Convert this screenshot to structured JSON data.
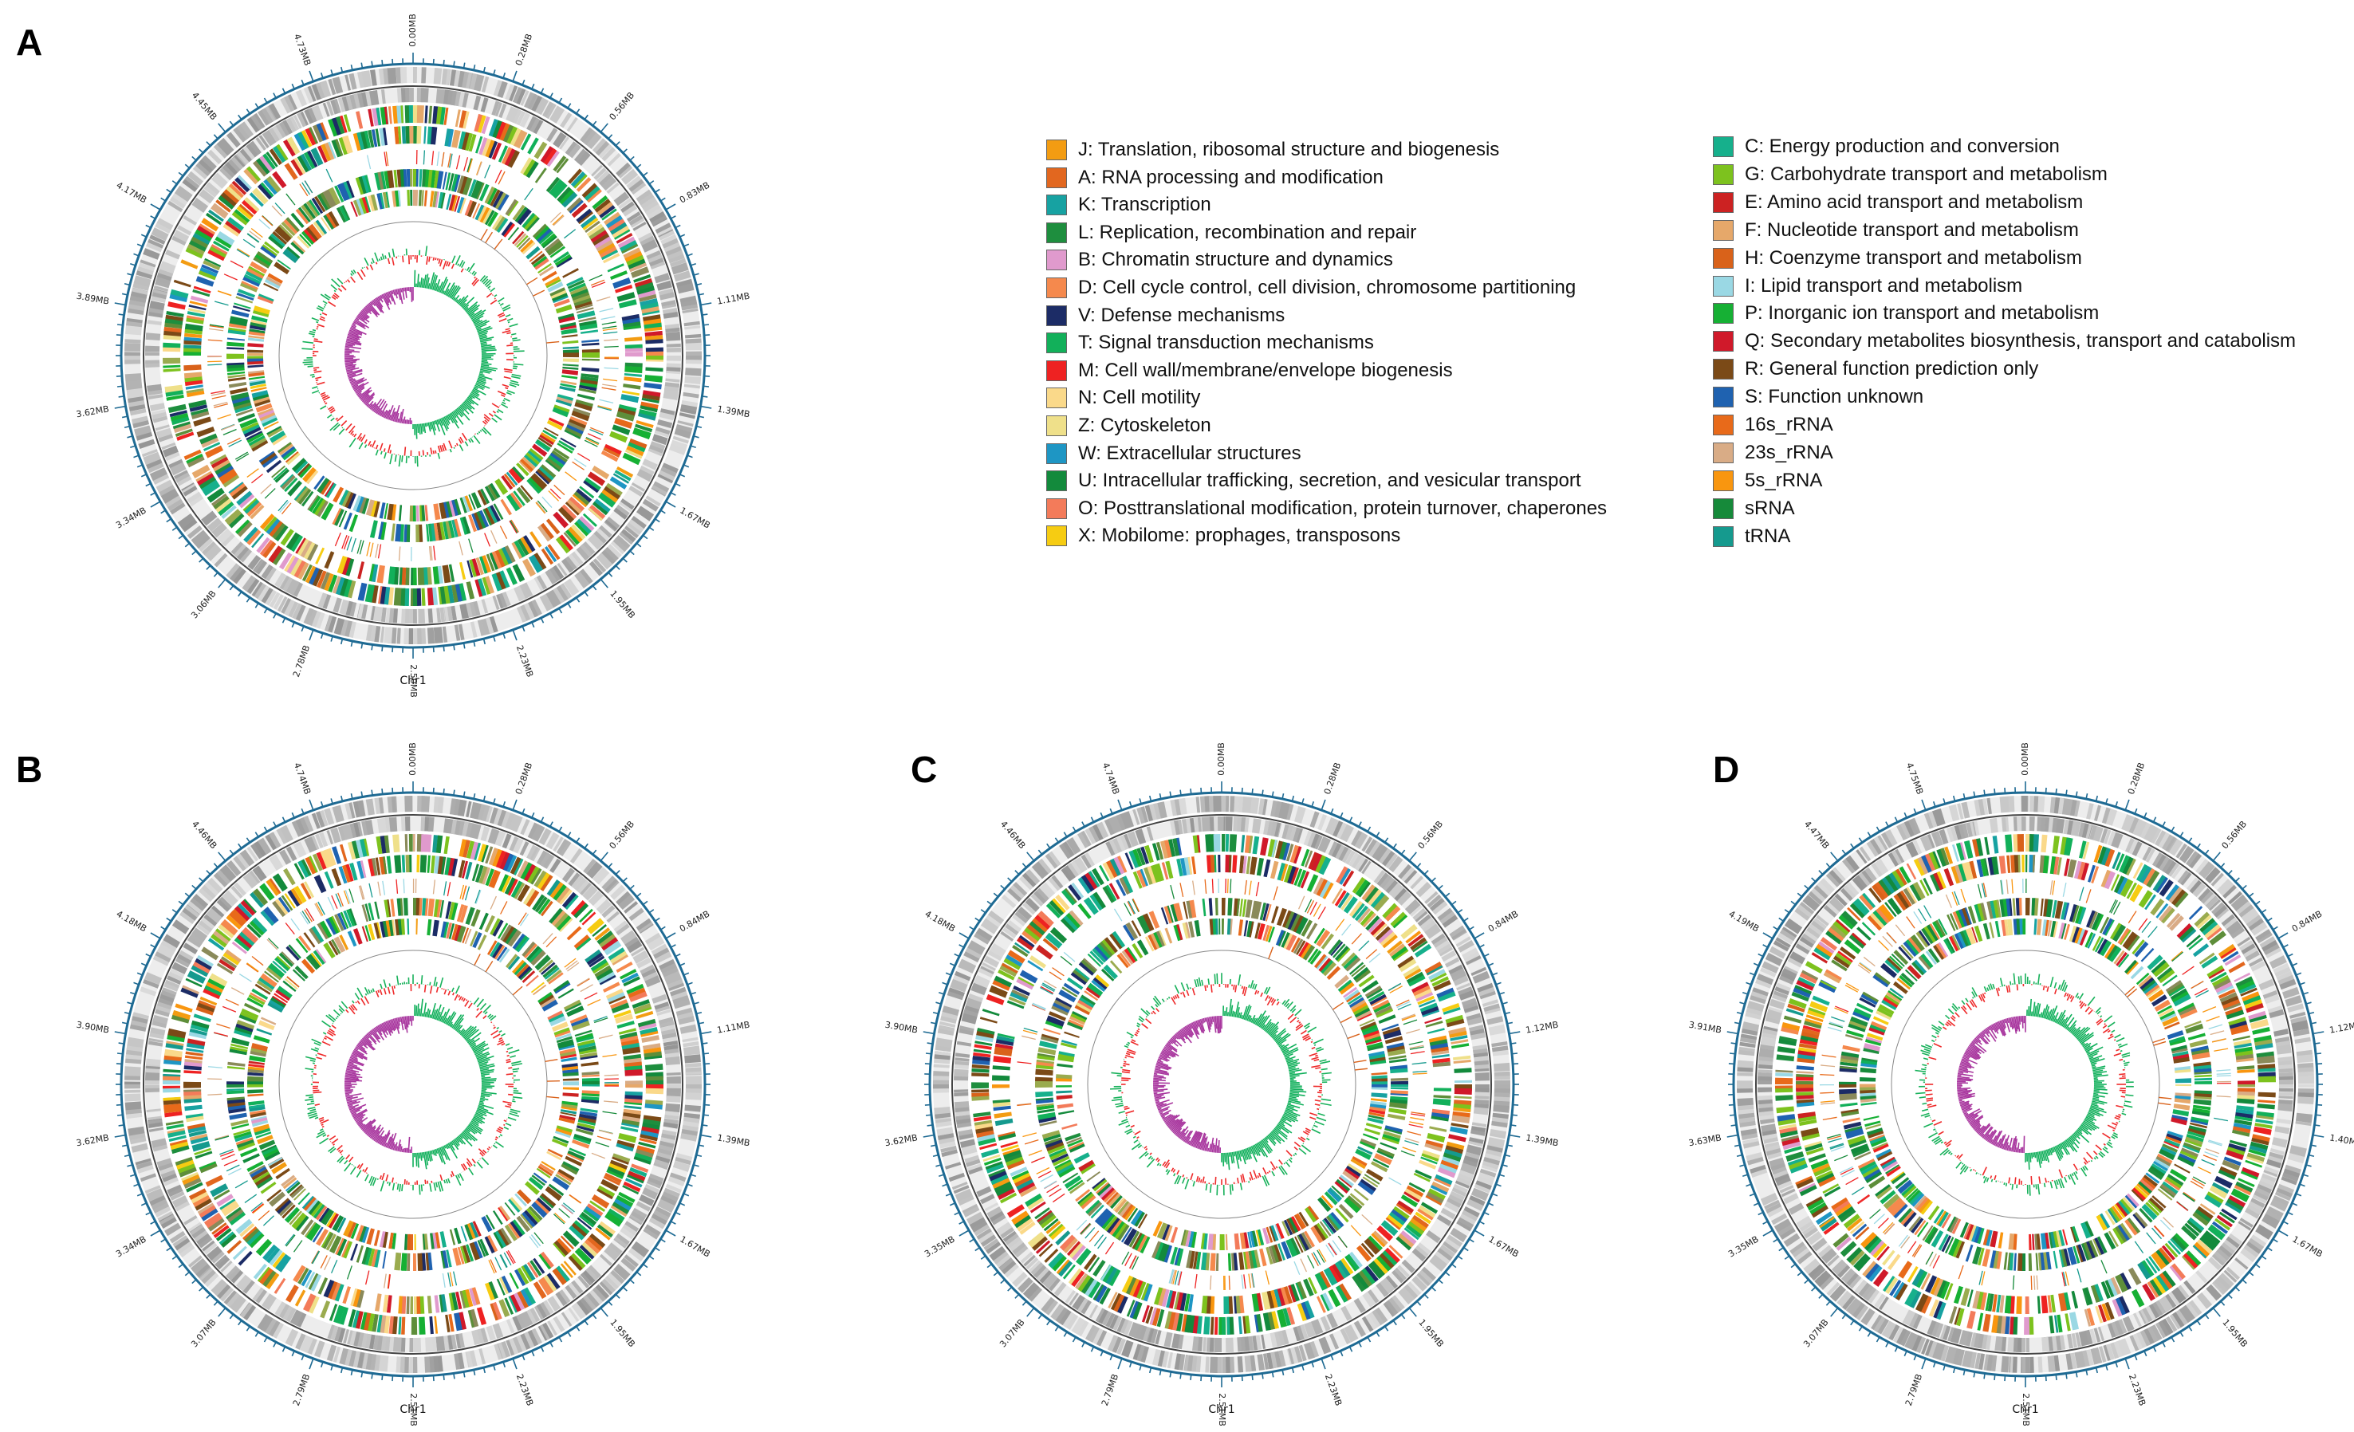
{
  "panels": [
    {
      "label": "A",
      "chromosome": "Chr1",
      "ticks": [
        "0.00MB",
        "0.28MB",
        "0.56MB",
        "0.83MB",
        "1.11MB",
        "1.39MB",
        "1.67MB",
        "1.95MB",
        "2.23MB",
        "2.50MB",
        "2.78MB",
        "3.06MB",
        "3.34MB",
        "3.62MB",
        "3.89MB",
        "4.17MB",
        "4.45MB",
        "4.73MB"
      ]
    },
    {
      "label": "B",
      "chromosome": "Chr1",
      "ticks": [
        "0.00MB",
        "0.28MB",
        "0.56MB",
        "0.84MB",
        "1.11MB",
        "1.39MB",
        "1.67MB",
        "1.95MB",
        "2.23MB",
        "2.51MB",
        "2.79MB",
        "3.07MB",
        "3.34MB",
        "3.62MB",
        "3.90MB",
        "4.18MB",
        "4.46MB",
        "4.74MB"
      ]
    },
    {
      "label": "C",
      "chromosome": "Chr1",
      "ticks": [
        "0.00MB",
        "0.28MB",
        "0.56MB",
        "0.84MB",
        "1.12MB",
        "1.39MB",
        "1.67MB",
        "1.95MB",
        "2.23MB",
        "2.51MB",
        "2.79MB",
        "3.07MB",
        "3.35MB",
        "3.62MB",
        "3.90MB",
        "4.18MB",
        "4.46MB",
        "4.74MB"
      ]
    },
    {
      "label": "D",
      "chromosome": "Chr1",
      "ticks": [
        "0.00MB",
        "0.28MB",
        "0.56MB",
        "0.84MB",
        "1.12MB",
        "1.40MB",
        "1.67MB",
        "1.95MB",
        "2.23MB",
        "2.51MB",
        "2.79MB",
        "3.07MB",
        "3.35MB",
        "3.63MB",
        "3.91MB",
        "4.19MB",
        "4.47MB",
        "4.75MB"
      ]
    }
  ],
  "legend_left": [
    {
      "label": "J: Translation, ribosomal structure and biogenesis",
      "color": "#F39C12"
    },
    {
      "label": "A: RNA processing and modification",
      "color": "#E2671F"
    },
    {
      "label": "K: Transcription",
      "color": "#17A2A2"
    },
    {
      "label": "L: Replication, recombination and repair",
      "color": "#1E8E3E"
    },
    {
      "label": "B: Chromatin structure and dynamics",
      "color": "#E09ACD"
    },
    {
      "label": "D: Cell cycle control, cell division, chromosome partitioning",
      "color": "#F5894D"
    },
    {
      "label": "V: Defense mechanisms",
      "color": "#1C2C66"
    },
    {
      "label": "T: Signal transduction mechanisms",
      "color": "#12B05A"
    },
    {
      "label": "M: Cell wall/membrane/envelope biogenesis",
      "color": "#EE2222"
    },
    {
      "label": "N: Cell motility",
      "color": "#FAD98A"
    },
    {
      "label": "Z: Cytoskeleton",
      "color": "#EFE08A"
    },
    {
      "label": "W: Extracellular structures",
      "color": "#1E96C4"
    },
    {
      "label": "U: Intracellular trafficking, secretion, and vesicular transport",
      "color": "#138A3C"
    },
    {
      "label": "O: Posttranslational modification, protein turnover, chaperones",
      "color": "#F37B5A"
    },
    {
      "label": "X: Mobilome: prophages, transposons",
      "color": "#F6CC12"
    }
  ],
  "legend_right": [
    {
      "label": "C: Energy production and conversion",
      "color": "#16B08C"
    },
    {
      "label": "G: Carbohydrate transport and metabolism",
      "color": "#7DC21E"
    },
    {
      "label": "E: Amino acid transport and metabolism",
      "color": "#CC2222"
    },
    {
      "label": "F: Nucleotide transport and metabolism",
      "color": "#E6A86A"
    },
    {
      "label": "H: Coenzyme transport and metabolism",
      "color": "#D9621A"
    },
    {
      "label": "I: Lipid transport and metabolism",
      "color": "#9AD8E4"
    },
    {
      "label": "P: Inorganic ion transport and metabolism",
      "color": "#16B034"
    },
    {
      "label": "Q: Secondary metabolites biosynthesis, transport and catabolism",
      "color": "#D0192A"
    },
    {
      "label": "R: General function prediction only",
      "color": "#7B4A17"
    },
    {
      "label": "S: Function unknown",
      "color": "#1F62B0"
    },
    {
      "label": "16s_rRNA",
      "color": "#E86A1A"
    },
    {
      "label": "23s_rRNA",
      "color": "#D9AC86"
    },
    {
      "label": "5s_rRNA",
      "color": "#F9960F"
    },
    {
      "label": "sRNA",
      "color": "#168A3A"
    },
    {
      "label": "tRNA",
      "color": "#159A8E"
    }
  ],
  "colors": {
    "axis": "#1E6A93",
    "gc_skew_pos": "#0FAF5A",
    "gc_skew_neg": "#A8369E",
    "gc_pos": "#17B15A",
    "gc_neg": "#EE2A2A"
  }
}
